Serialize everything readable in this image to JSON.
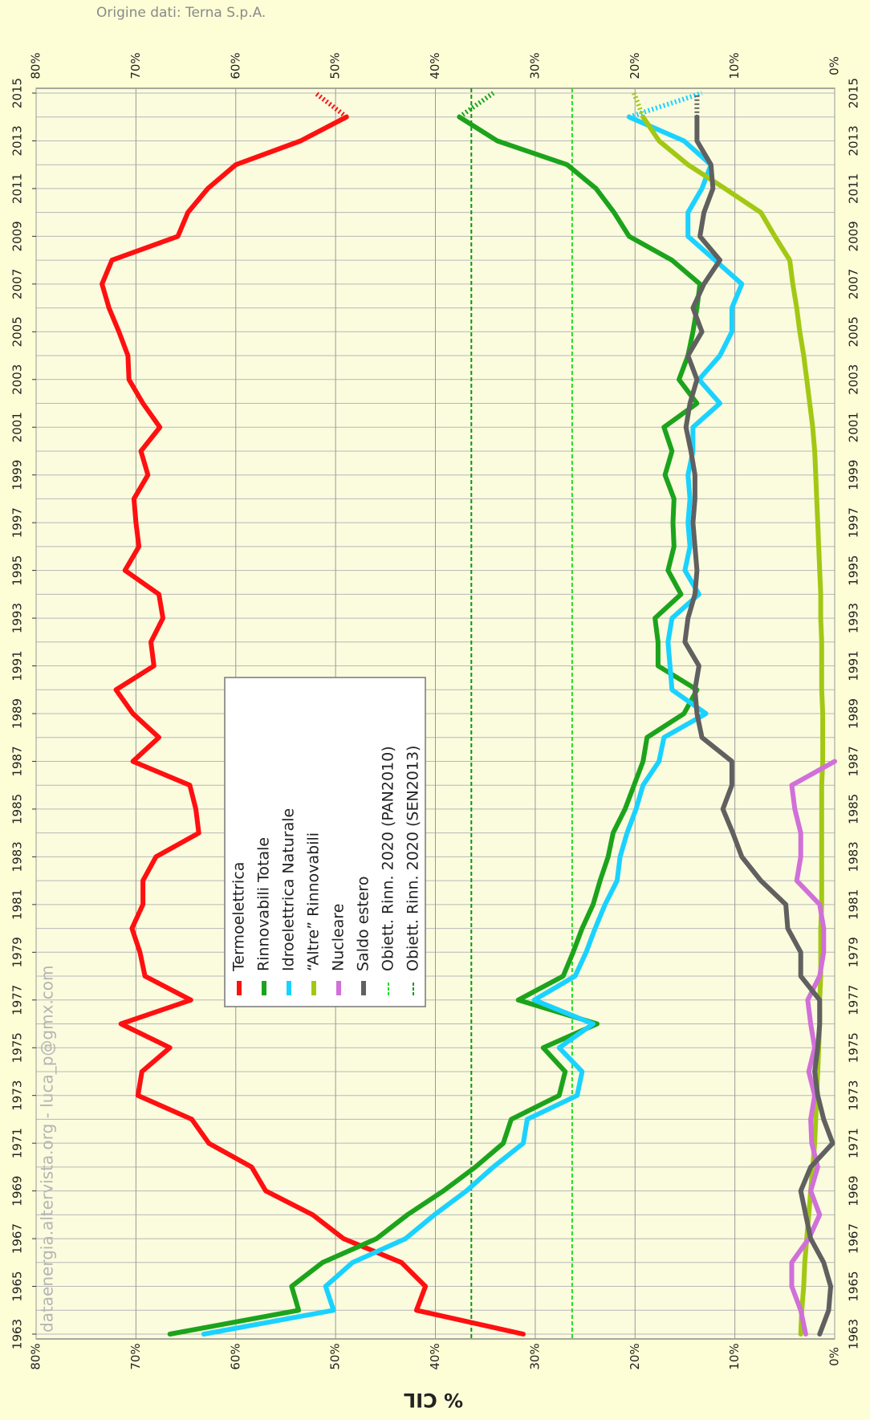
{
  "chart_data": {
    "type": "line",
    "source_note": "Origine dati: Terna S.p.A.",
    "watermark": "dataenergia.altervista.org - luca_p@gmx.com",
    "ylabel": "% CIL",
    "grid": true,
    "dotted_last_segment": true,
    "x": [
      1963,
      1964,
      1965,
      1966,
      1967,
      1968,
      1969,
      1970,
      1971,
      1972,
      1973,
      1974,
      1975,
      1976,
      1977,
      1978,
      1979,
      1980,
      1981,
      1982,
      1983,
      1984,
      1985,
      1986,
      1987,
      1988,
      1989,
      1990,
      1991,
      1992,
      1993,
      1994,
      1995,
      1996,
      1997,
      1998,
      1999,
      2000,
      2001,
      2002,
      2003,
      2004,
      2005,
      2006,
      2007,
      2008,
      2009,
      2010,
      2011,
      2012,
      2013,
      2014,
      2015
    ],
    "xlim": [
      1963,
      2015
    ],
    "xticks": [
      1963,
      1965,
      1967,
      1969,
      1971,
      1973,
      1975,
      1977,
      1979,
      1981,
      1983,
      1985,
      1987,
      1989,
      1991,
      1993,
      1995,
      1997,
      1999,
      2001,
      2003,
      2005,
      2007,
      2009,
      2011,
      2013,
      2015
    ],
    "ylim": [
      0,
      80
    ],
    "yticks": [
      {
        "value": 0,
        "label": "0%"
      },
      {
        "value": 10,
        "label": "10%"
      },
      {
        "value": 20,
        "label": "20%"
      },
      {
        "value": 30,
        "label": "30%"
      },
      {
        "value": 40,
        "label": "40%"
      },
      {
        "value": 50,
        "label": "50%"
      },
      {
        "value": 60,
        "label": "60%"
      },
      {
        "value": 70,
        "label": "70%"
      },
      {
        "value": 80,
        "label": "80%"
      }
    ],
    "series": [
      {
        "name": "Termoelettrica",
        "color": "#ff1010",
        "values": [
          31.2,
          41.9,
          41.0,
          43.4,
          49.2,
          52.3,
          57.0,
          58.4,
          62.7,
          64.4,
          69.8,
          69.4,
          66.6,
          71.5,
          64.5,
          69.1,
          69.6,
          70.4,
          69.3,
          69.3,
          68.0,
          63.7,
          64.0,
          64.6,
          70.3,
          67.7,
          70.3,
          72.0,
          68.2,
          68.5,
          67.3,
          67.7,
          71.1,
          69.7,
          70.0,
          70.2,
          68.8,
          69.5,
          67.6,
          69.3,
          70.7,
          70.8,
          71.7,
          72.7,
          73.4,
          72.4,
          65.8,
          64.8,
          62.8,
          60.0,
          53.5,
          48.9,
          52.0
        ]
      },
      {
        "name": "Rinnovabili Totale",
        "color": "#1ca31c",
        "values": [
          66.6,
          53.7,
          54.4,
          51.3,
          45.9,
          42.8,
          39.2,
          36.0,
          33.2,
          32.4,
          27.6,
          27.0,
          29.2,
          23.8,
          31.7,
          27.2,
          26.2,
          25.3,
          24.2,
          23.5,
          22.7,
          22.2,
          21.0,
          20.1,
          19.2,
          18.8,
          15.1,
          13.8,
          17.7,
          17.7,
          18.0,
          15.4,
          16.7,
          16.1,
          16.2,
          16.1,
          17.0,
          16.3,
          17.1,
          13.8,
          15.6,
          14.7,
          14.2,
          13.8,
          13.5,
          16.3,
          20.6,
          22.1,
          23.9,
          26.8,
          33.8,
          37.6,
          34.2
        ]
      },
      {
        "name": "Idroelettrica Naturale",
        "color": "#1ad2ff",
        "values": [
          63.2,
          50.2,
          51.0,
          48.3,
          43.0,
          40.1,
          36.9,
          34.2,
          31.2,
          30.8,
          25.8,
          25.3,
          27.6,
          24.2,
          30.1,
          26.0,
          24.9,
          24.0,
          23.0,
          21.8,
          21.5,
          20.8,
          19.9,
          19.2,
          17.6,
          17.1,
          12.9,
          16.3,
          16.5,
          16.7,
          16.3,
          13.6,
          15.0,
          14.5,
          14.7,
          14.5,
          14.7,
          14.2,
          14.2,
          11.5,
          13.6,
          11.5,
          10.3,
          10.3,
          9.3,
          12.0,
          14.7,
          14.7,
          13.3,
          12.4,
          15.1,
          20.6,
          13.3
        ]
      },
      {
        "name": "“Altre” Rinnovabili",
        "color": "#a2c814",
        "values": [
          3.4,
          3.3,
          3.1,
          3.0,
          2.8,
          2.6,
          2.4,
          2.2,
          2.0,
          1.9,
          1.8,
          1.7,
          1.6,
          1.5,
          1.5,
          1.4,
          1.4,
          1.4,
          1.3,
          1.3,
          1.3,
          1.3,
          1.3,
          1.3,
          1.2,
          1.2,
          1.2,
          1.3,
          1.3,
          1.3,
          1.4,
          1.4,
          1.5,
          1.6,
          1.7,
          1.8,
          1.9,
          2.0,
          2.2,
          2.5,
          2.8,
          3.1,
          3.5,
          3.8,
          4.2,
          4.5,
          6.0,
          7.4,
          11.0,
          14.7,
          17.6,
          19.2,
          20.1
        ]
      },
      {
        "name": "Nucleare",
        "color": "#d070d8",
        "values": [
          2.9,
          3.4,
          4.3,
          4.3,
          2.6,
          1.5,
          2.4,
          1.7,
          2.3,
          2.4,
          2.0,
          2.6,
          2.0,
          2.4,
          2.7,
          1.5,
          1.1,
          1.1,
          1.5,
          3.8,
          3.4,
          3.4,
          4.0,
          4.3,
          0,
          null,
          null,
          null,
          null,
          null,
          null,
          null,
          null,
          null,
          null,
          null,
          null,
          null,
          null,
          null,
          null,
          null,
          null,
          null,
          null,
          null,
          null,
          null,
          null,
          null,
          null,
          null,
          null
        ]
      },
      {
        "name": "Saldo estero",
        "color": "#606060",
        "values": [
          1.5,
          0.6,
          0.4,
          1.1,
          2.4,
          2.9,
          3.4,
          2.4,
          0.2,
          1.1,
          1.7,
          2.0,
          1.7,
          1.5,
          1.5,
          3.4,
          3.4,
          4.7,
          4.9,
          7.4,
          9.3,
          10.2,
          11.2,
          10.3,
          10.3,
          13.3,
          13.8,
          14.0,
          13.6,
          15.0,
          14.7,
          14.0,
          13.8,
          14.0,
          14.2,
          14.0,
          14.0,
          14.4,
          14.9,
          14.5,
          13.8,
          14.7,
          13.3,
          14.2,
          13.1,
          11.5,
          13.5,
          13.1,
          12.2,
          12.4,
          13.8,
          13.8,
          13.8
        ]
      }
    ],
    "reference_lines": [
      {
        "name": "Obiett. Rinn. 2020 (PAN2010)",
        "color": "#22dd22",
        "value": 26.3
      },
      {
        "name": "Obiett. Rinn. 2020 (SEN2013)",
        "color": "#0a9a0a",
        "value": 36.4
      }
    ]
  }
}
